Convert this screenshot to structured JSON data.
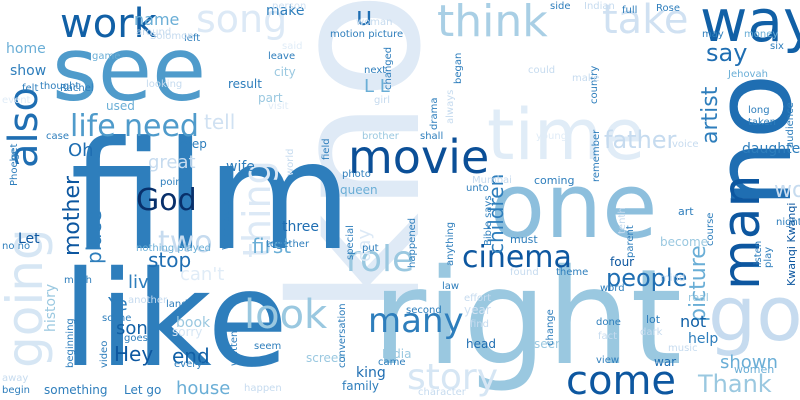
{
  "words": [
    {
      "text": "know",
      "color": "#dfeaf6"
    },
    {
      "text": "film",
      "color": "#2e7ebc"
    },
    {
      "text": "one",
      "color": "#8dbfdd"
    },
    {
      "text": "right",
      "color": "#9ac8e0"
    },
    {
      "text": "like",
      "color": "#2e7ebc"
    },
    {
      "text": "see",
      "color": "#4f9bcb"
    },
    {
      "text": "no",
      "color": "#1f6eb2"
    },
    {
      "text": "time",
      "color": "#e0ecf7"
    },
    {
      "text": "way",
      "color": "#1160a6"
    },
    {
      "text": "going",
      "color": "#d6e6f4"
    },
    {
      "text": "work",
      "color": "#1160a6"
    },
    {
      "text": "song",
      "color": "#dce9f6"
    },
    {
      "text": "think",
      "color": "#a9cfe5"
    },
    {
      "text": "take",
      "color": "#d0e1f2"
    },
    {
      "text": "man",
      "color": "#0d57a0"
    },
    {
      "text": "go",
      "color": "#c6dbef"
    },
    {
      "text": "movie",
      "color": "#0b4f97"
    },
    {
      "text": "cinema",
      "color": "#0d57a0"
    },
    {
      "text": "come",
      "color": "#0d57a0"
    },
    {
      "text": "many",
      "color": "#2e7ebc"
    },
    {
      "text": "look",
      "color": "#9ac8e0"
    },
    {
      "text": "role",
      "color": "#9ac8e0"
    },
    {
      "text": "story",
      "color": "#d6e6f4"
    },
    {
      "text": "thing",
      "color": "#dce9f6"
    },
    {
      "text": "also",
      "color": "#1f6eb2"
    },
    {
      "text": "life",
      "color": "#4f9bcb"
    },
    {
      "text": "need",
      "color": "#4f9bcb"
    },
    {
      "text": "God",
      "color": "#08306b"
    },
    {
      "text": "two",
      "color": "#c6dbef"
    },
    {
      "text": "mother",
      "color": "#0d57a0"
    },
    {
      "text": "children",
      "color": "#2e7ebc"
    },
    {
      "text": "artist",
      "color": "#2e7ebc"
    },
    {
      "text": "picture",
      "color": "#6aaed6"
    },
    {
      "text": "people",
      "color": "#1f6eb2"
    },
    {
      "text": "Thank",
      "color": "#9ac8e0"
    },
    {
      "text": "say",
      "color": "#1f6eb2"
    },
    {
      "text": "would",
      "color": "#c6dbef"
    },
    {
      "text": "u",
      "color": "#1f6eb2"
    },
    {
      "text": "L L",
      "color": "#6aaed6"
    },
    {
      "text": "father",
      "color": "#c6dbef"
    },
    {
      "text": "stop",
      "color": "#1f6eb2"
    },
    {
      "text": "first",
      "color": "#6aaed6"
    },
    {
      "text": "live",
      "color": "#2e7ebc"
    },
    {
      "text": "son",
      "color": "#1160a6"
    },
    {
      "text": "Hey",
      "color": "#0d57a0"
    },
    {
      "text": "end",
      "color": "#1160a6"
    },
    {
      "text": "Ye",
      "color": "#2e7ebc"
    },
    {
      "text": "can't",
      "color": "#e0ecf7"
    },
    {
      "text": "place",
      "color": "#2e7ebc"
    },
    {
      "text": "history",
      "color": "#9ac8e0"
    },
    {
      "text": "great",
      "color": "#c6dbef"
    },
    {
      "text": "shown",
      "color": "#6aaed6"
    },
    {
      "text": "house",
      "color": "#6aaed6"
    },
    {
      "text": "Oh",
      "color": "#1f6eb2"
    },
    {
      "text": "name",
      "color": "#6aaed6"
    },
    {
      "text": "tell",
      "color": "#d0e1f2"
    },
    {
      "text": "make",
      "color": "#2e7ebc"
    },
    {
      "text": "show",
      "color": "#2e7ebc"
    },
    {
      "text": "home",
      "color": "#6aaed6"
    },
    {
      "text": "daughter",
      "color": "#2e7ebc"
    },
    {
      "text": "not",
      "color": "#1160a6"
    },
    {
      "text": "book",
      "color": "#9ac8e0"
    },
    {
      "text": "help",
      "color": "#2e7ebc"
    },
    {
      "text": "women",
      "color": "#6aaed6"
    },
    {
      "text": "three",
      "color": "#1f6eb2"
    },
    {
      "text": "Let",
      "color": "#0d57a0"
    },
    {
      "text": "wife",
      "color": "#2e7ebc"
    },
    {
      "text": "queen",
      "color": "#6aaed6"
    },
    {
      "text": "day",
      "color": "#dce9f6"
    },
    {
      "text": "king",
      "color": "#1f6eb2"
    },
    {
      "text": "family",
      "color": "#2e7ebc"
    },
    {
      "text": "something",
      "color": "#2e7ebc"
    },
    {
      "text": "Let go",
      "color": "#2e7ebc"
    },
    {
      "text": "India",
      "color": "#9ac8e0"
    },
    {
      "text": "screen",
      "color": "#9ac8e0"
    },
    {
      "text": "head",
      "color": "#1f6eb2"
    },
    {
      "text": "seen",
      "color": "#9ac8e0"
    },
    {
      "text": "war",
      "color": "#1f6eb2"
    },
    {
      "text": "year",
      "color": "#d0e1f2"
    },
    {
      "text": "become",
      "color": "#9ac8e0"
    },
    {
      "text": "four",
      "color": "#0d57a0"
    },
    {
      "text": "used",
      "color": "#6aaed6"
    },
    {
      "text": "result",
      "color": "#2e7ebc"
    },
    {
      "text": "keep",
      "color": "#2e7ebc"
    },
    {
      "text": "point",
      "color": "#2e7ebc"
    },
    {
      "text": "coming",
      "color": "#2e7ebc"
    },
    {
      "text": "must",
      "color": "#2e7ebc"
    },
    {
      "text": "art",
      "color": "#2e7ebc"
    },
    {
      "text": "real",
      "color": "#9ac8e0"
    },
    {
      "text": "lot",
      "color": "#2e7ebc"
    },
    {
      "text": "sorry",
      "color": "#d6e6f4"
    },
    {
      "text": "around",
      "color": "#c6dbef"
    },
    {
      "text": "left",
      "color": "#2e7ebc"
    },
    {
      "text": "next",
      "color": "#2e7ebc"
    },
    {
      "text": "part",
      "color": "#9ac8e0"
    },
    {
      "text": "city",
      "color": "#9ac8e0"
    },
    {
      "text": "visit",
      "color": "#e0ecf7"
    },
    {
      "text": "thought",
      "color": "#2e7ebc"
    },
    {
      "text": "game",
      "color": "#6aaed6"
    },
    {
      "text": "leave",
      "color": "#2e7ebc"
    },
    {
      "text": "said",
      "color": "#e0ecf7"
    },
    {
      "text": "motion picture",
      "color": "#2e7ebc"
    },
    {
      "text": "woman",
      "color": "#c6dbef"
    },
    {
      "text": "person",
      "color": "#d0e1f2"
    },
    {
      "text": "side",
      "color": "#2e7ebc"
    },
    {
      "text": "Indian",
      "color": "#c6dbef"
    },
    {
      "text": "full",
      "color": "#2e7ebc"
    },
    {
      "text": "Rose",
      "color": "#2e7ebc"
    },
    {
      "text": "may",
      "color": "#2e7ebc"
    },
    {
      "text": "money",
      "color": "#6aaed6"
    },
    {
      "text": "six",
      "color": "#2e7ebc"
    },
    {
      "text": "Jehovah",
      "color": "#6aaed6"
    },
    {
      "text": "long",
      "color": "#2e7ebc"
    },
    {
      "text": "taken",
      "color": "#2e7ebc"
    },
    {
      "text": "audience",
      "color": "#2e7ebc"
    },
    {
      "text": "voice",
      "color": "#c6dbef"
    },
    {
      "text": "course",
      "color": "#2e7ebc"
    },
    {
      "text": "listen",
      "color": "#2e7ebc"
    },
    {
      "text": "play",
      "color": "#2e7ebc"
    },
    {
      "text": "night",
      "color": "#2e7ebc"
    },
    {
      "text": "Kwanqi Kwanqi",
      "color": "#0d57a0"
    },
    {
      "text": "felt",
      "color": "#2e7ebc"
    },
    {
      "text": "Rachel",
      "color": "#2e7ebc"
    },
    {
      "text": "event",
      "color": "#e0ecf7"
    },
    {
      "text": "Solomon",
      "color": "#c6dbef"
    },
    {
      "text": "brother",
      "color": "#9ac8e0"
    },
    {
      "text": "shall",
      "color": "#2e7ebc"
    },
    {
      "text": "young",
      "color": "#e0ecf7"
    },
    {
      "text": "remember",
      "color": "#2e7ebc"
    },
    {
      "text": "country",
      "color": "#2e7ebc"
    },
    {
      "text": "case",
      "color": "#2e7ebc"
    },
    {
      "text": "get",
      "color": "#2e7ebc"
    },
    {
      "text": "Phoebe",
      "color": "#2e7ebc"
    },
    {
      "text": "photo",
      "color": "#2e7ebc"
    },
    {
      "text": "Mumbai",
      "color": "#c6dbef"
    },
    {
      "text": "Bible says",
      "color": "#2e7ebc"
    },
    {
      "text": "anything",
      "color": "#2e7ebc"
    },
    {
      "text": "happened",
      "color": "#2e7ebc"
    },
    {
      "text": "unto",
      "color": "#2e7ebc"
    },
    {
      "text": "special",
      "color": "#2e7ebc"
    },
    {
      "text": "put",
      "color": "#2e7ebc"
    },
    {
      "text": "together",
      "color": "#2e7ebc"
    },
    {
      "text": "Witnesses",
      "color": "#2e7ebc"
    },
    {
      "text": "nothing played",
      "color": "#6aaed6"
    },
    {
      "text": "no no",
      "color": "#2e7ebc"
    },
    {
      "text": "much",
      "color": "#2e7ebc"
    },
    {
      "text": "land",
      "color": "#2e7ebc"
    },
    {
      "text": "scene",
      "color": "#2e7ebc"
    },
    {
      "text": "goes",
      "color": "#2e7ebc"
    },
    {
      "text": "video",
      "color": "#2e7ebc"
    },
    {
      "text": "beginning",
      "color": "#2e7ebc"
    },
    {
      "text": "written",
      "color": "#2e7ebc"
    },
    {
      "text": "seem",
      "color": "#2e7ebc"
    },
    {
      "text": "every",
      "color": "#2e7ebc"
    },
    {
      "text": "conversation",
      "color": "#2e7ebc"
    },
    {
      "text": "came",
      "color": "#2e7ebc"
    },
    {
      "text": "second",
      "color": "#2e7ebc"
    },
    {
      "text": "law",
      "color": "#2e7ebc"
    },
    {
      "text": "effort",
      "color": "#c6dbef"
    },
    {
      "text": "find",
      "color": "#c6dbef"
    },
    {
      "text": "fact",
      "color": "#c6dbef"
    },
    {
      "text": "done",
      "color": "#2e7ebc"
    },
    {
      "text": "dark",
      "color": "#c6dbef"
    },
    {
      "text": "view",
      "color": "#2e7ebc"
    },
    {
      "text": "music",
      "color": "#c6dbef"
    },
    {
      "text": "theme",
      "color": "#2e7ebc"
    },
    {
      "text": "found",
      "color": "#c6dbef"
    },
    {
      "text": "word",
      "color": "#2e7ebc"
    },
    {
      "text": "parent",
      "color": "#2e7ebc"
    },
    {
      "text": "tenth",
      "color": "#c6dbef"
    },
    {
      "text": "away",
      "color": "#c6dbef"
    },
    {
      "text": "begin",
      "color": "#2e7ebc"
    },
    {
      "text": "character",
      "color": "#c6dbef"
    },
    {
      "text": "happen",
      "color": "#c6dbef"
    },
    {
      "text": "drama",
      "color": "#2e7ebc"
    },
    {
      "text": "always",
      "color": "#c6dbef"
    },
    {
      "text": "began",
      "color": "#2e7ebc"
    },
    {
      "text": "could",
      "color": "#c6dbef"
    },
    {
      "text": "looking",
      "color": "#c6dbef"
    },
    {
      "text": "girl",
      "color": "#c6dbef"
    },
    {
      "text": "changed",
      "color": "#2e7ebc"
    },
    {
      "text": "change",
      "color": "#2e7ebc"
    },
    {
      "text": "another",
      "color": "#c6dbef"
    },
    {
      "text": "world",
      "color": "#c6dbef"
    },
    {
      "text": "field",
      "color": "#2e7ebc"
    },
    {
      "text": "make",
      "color": "#c6dbef"
    },
    {
      "text": "mind",
      "color": "#c6dbef"
    }
  ]
}
